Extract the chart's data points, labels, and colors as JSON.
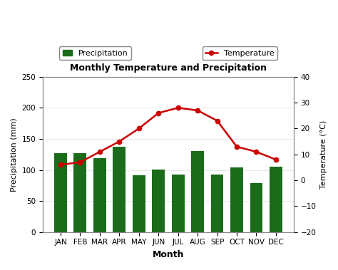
{
  "months": [
    "JAN",
    "FEB",
    "MAR",
    "APR",
    "MAY",
    "JUN",
    "JUL",
    "AUG",
    "SEP",
    "OCT",
    "NOV",
    "DEC"
  ],
  "precipitation": [
    127,
    127,
    119,
    137,
    92,
    101,
    93,
    130,
    93,
    104,
    79,
    105
  ],
  "temperature": [
    6,
    7,
    11,
    15,
    20,
    26,
    28,
    27,
    23,
    13,
    11,
    8
  ],
  "bar_color": "#1a6b1a",
  "line_color": "#cc0000",
  "title": "Monthly Temperature and Precipitation",
  "xlabel": "Month",
  "ylabel_left": "Precipitation (mm)",
  "ylabel_right": "Temperature (°C)",
  "ylim_left": [
    0,
    250
  ],
  "ylim_right": [
    -20,
    40
  ],
  "yticks_left": [
    0,
    50,
    100,
    150,
    200,
    250
  ],
  "yticks_right": [
    -20,
    -10,
    0,
    10,
    20,
    30,
    40
  ],
  "legend_precip": "Precipitation",
  "legend_temp": "Temperature",
  "background_color": "#ffffff",
  "plot_bg_color": "#ffffff",
  "title_fontsize": 9,
  "axis_fontsize": 8,
  "tick_fontsize": 7.5
}
